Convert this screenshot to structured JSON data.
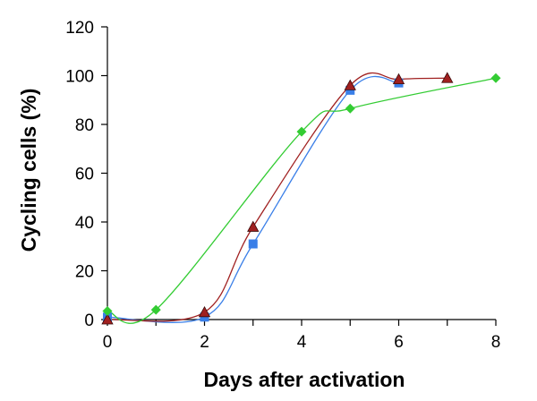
{
  "chart_data": {
    "type": "line",
    "title": "",
    "xlabel": "Days after activation",
    "ylabel": "Cycling cells (%)",
    "xlim": [
      0,
      8
    ],
    "ylim": [
      0,
      120
    ],
    "x_ticks": [
      "0",
      "2",
      "4",
      "6",
      "8"
    ],
    "y_ticks": [
      "0",
      "20",
      "40",
      "60",
      "80",
      "100",
      "120"
    ],
    "grid": false,
    "legend": "none",
    "smoothed": true,
    "series": [
      {
        "marker": "square",
        "color": "#3a7fe8",
        "points": [
          [
            0,
            1
          ],
          [
            2,
            1
          ],
          [
            3,
            31
          ],
          [
            5,
            94
          ],
          [
            6,
            97
          ]
        ]
      },
      {
        "marker": "triangle",
        "color": "#a02020",
        "points": [
          [
            0,
            0
          ],
          [
            2,
            3
          ],
          [
            3,
            38
          ],
          [
            5,
            96
          ],
          [
            6,
            98.5
          ],
          [
            7,
            99
          ]
        ]
      },
      {
        "marker": "diamond",
        "color": "#33cc33",
        "points": [
          [
            0,
            3.5
          ],
          [
            1,
            4
          ],
          [
            4,
            77
          ],
          [
            5,
            86.5
          ],
          [
            8,
            99
          ]
        ]
      }
    ]
  }
}
